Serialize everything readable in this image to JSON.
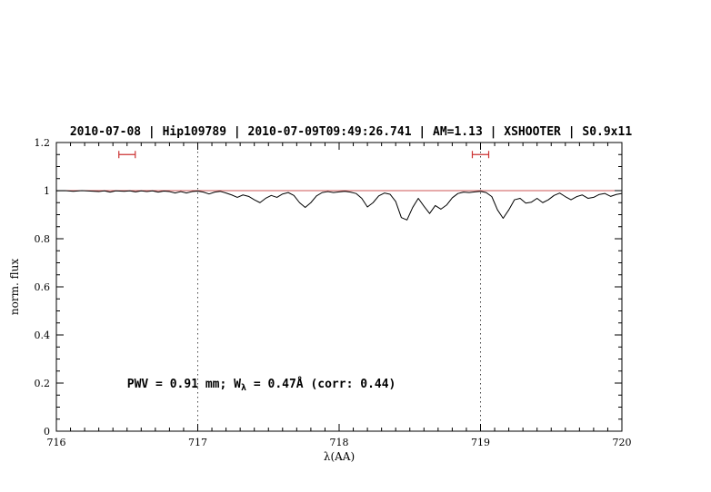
{
  "title": {
    "text": "2010-07-08 | Hip109789 | 2010-07-09T09:49:26.741 | AM=1.13 | XSHOOTER | S0.9x11"
  },
  "colors": {
    "accent_blue": "#0000e6",
    "marker_red": "#cc3333",
    "continuum_red": "#cc5555",
    "spectrum_black": "#000000"
  },
  "chart_data": {
    "type": "line",
    "title": "2010-07-08 | Hip109789 | 2010-07-09T09:49:26.741 | AM=1.13 | XSHOOTER | S0.9x11",
    "xlabel": "λ(AA)",
    "ylabel": "norm. flux",
    "xlim": [
      716,
      720
    ],
    "ylim": [
      0,
      1.2
    ],
    "x_ticks": [
      716,
      717,
      718,
      719,
      720
    ],
    "y_ticks": [
      0,
      0.2,
      0.4,
      0.6,
      0.8,
      1,
      1.2
    ],
    "y_tick_labels": [
      "0",
      "0.2",
      "0.4",
      "0.6",
      "0.8",
      "1",
      "1.2"
    ],
    "grid": false,
    "legend": "none",
    "guide_lines_x": [
      717,
      719
    ],
    "continuum_line": {
      "y": 1.0
    },
    "band_markers": [
      {
        "x_center": 716.5,
        "half_width": 0.058,
        "y": 1.15
      },
      {
        "x_center": 719.0,
        "half_width": 0.058,
        "y": 1.15
      }
    ],
    "annotation": {
      "pre": "PWV = 0.91 mm; W",
      "sub": "λ",
      "post": " = 0.47Å (corr: 0.44)",
      "x": 716.5,
      "y": 0.2
    },
    "series": [
      {
        "name": "normalized spectrum",
        "points": [
          [
            716.0,
            0.999
          ],
          [
            716.06,
            1.0
          ],
          [
            716.12,
            0.997
          ],
          [
            716.18,
            1.0
          ],
          [
            716.24,
            0.998
          ],
          [
            716.3,
            0.996
          ],
          [
            716.34,
            0.999
          ],
          [
            716.38,
            0.994
          ],
          [
            716.42,
            0.999
          ],
          [
            716.48,
            0.997
          ],
          [
            716.52,
            0.999
          ],
          [
            716.56,
            0.995
          ],
          [
            716.6,
            0.999
          ],
          [
            716.64,
            0.996
          ],
          [
            716.68,
            0.999
          ],
          [
            716.72,
            0.994
          ],
          [
            716.76,
            0.998
          ],
          [
            716.8,
            0.996
          ],
          [
            716.84,
            0.99
          ],
          [
            716.88,
            0.996
          ],
          [
            716.92,
            0.99
          ],
          [
            716.96,
            0.996
          ],
          [
            717.0,
            0.998
          ],
          [
            717.04,
            0.994
          ],
          [
            717.08,
            0.986
          ],
          [
            717.12,
            0.994
          ],
          [
            717.16,
            0.997
          ],
          [
            717.2,
            0.99
          ],
          [
            717.24,
            0.982
          ],
          [
            717.28,
            0.972
          ],
          [
            717.32,
            0.982
          ],
          [
            717.36,
            0.976
          ],
          [
            717.4,
            0.962
          ],
          [
            717.44,
            0.95
          ],
          [
            717.48,
            0.968
          ],
          [
            717.52,
            0.98
          ],
          [
            717.56,
            0.972
          ],
          [
            717.6,
            0.986
          ],
          [
            717.64,
            0.992
          ],
          [
            717.68,
            0.98
          ],
          [
            717.72,
            0.95
          ],
          [
            717.76,
            0.93
          ],
          [
            717.8,
            0.95
          ],
          [
            717.84,
            0.978
          ],
          [
            717.88,
            0.992
          ],
          [
            717.92,
            0.996
          ],
          [
            717.96,
            0.992
          ],
          [
            718.0,
            0.995
          ],
          [
            718.04,
            0.997
          ],
          [
            718.08,
            0.994
          ],
          [
            718.12,
            0.988
          ],
          [
            718.16,
            0.968
          ],
          [
            718.2,
            0.932
          ],
          [
            718.24,
            0.95
          ],
          [
            718.28,
            0.978
          ],
          [
            718.32,
            0.99
          ],
          [
            718.36,
            0.985
          ],
          [
            718.4,
            0.955
          ],
          [
            718.44,
            0.888
          ],
          [
            718.48,
            0.878
          ],
          [
            718.52,
            0.93
          ],
          [
            718.56,
            0.968
          ],
          [
            718.6,
            0.935
          ],
          [
            718.64,
            0.905
          ],
          [
            718.68,
            0.938
          ],
          [
            718.72,
            0.923
          ],
          [
            718.76,
            0.94
          ],
          [
            718.8,
            0.97
          ],
          [
            718.84,
            0.988
          ],
          [
            718.88,
            0.994
          ],
          [
            718.92,
            0.992
          ],
          [
            718.96,
            0.995
          ],
          [
            719.0,
            0.997
          ],
          [
            719.04,
            0.992
          ],
          [
            719.08,
            0.975
          ],
          [
            719.12,
            0.92
          ],
          [
            719.16,
            0.885
          ],
          [
            719.2,
            0.92
          ],
          [
            719.24,
            0.962
          ],
          [
            719.28,
            0.968
          ],
          [
            719.32,
            0.948
          ],
          [
            719.36,
            0.952
          ],
          [
            719.4,
            0.968
          ],
          [
            719.44,
            0.95
          ],
          [
            719.48,
            0.962
          ],
          [
            719.52,
            0.98
          ],
          [
            719.56,
            0.99
          ],
          [
            719.6,
            0.975
          ],
          [
            719.64,
            0.962
          ],
          [
            719.68,
            0.975
          ],
          [
            719.72,
            0.982
          ],
          [
            719.76,
            0.968
          ],
          [
            719.8,
            0.972
          ],
          [
            719.84,
            0.984
          ],
          [
            719.88,
            0.988
          ],
          [
            719.92,
            0.976
          ],
          [
            719.96,
            0.984
          ],
          [
            720.0,
            0.988
          ]
        ]
      }
    ]
  }
}
